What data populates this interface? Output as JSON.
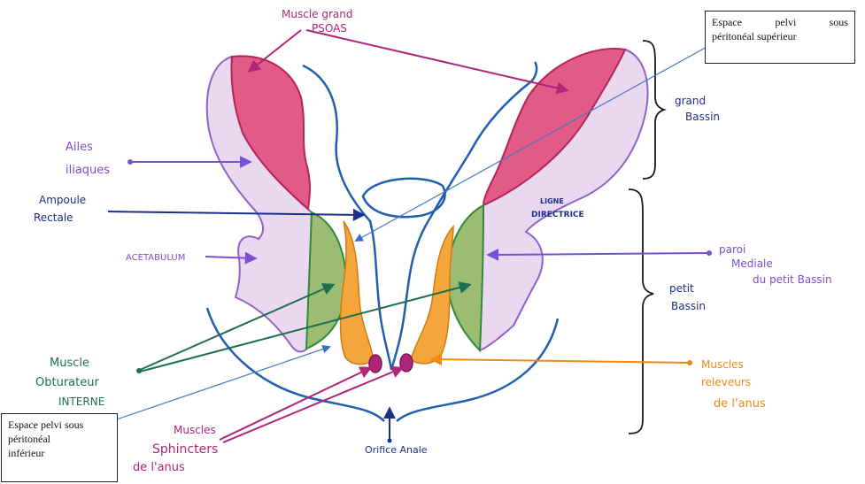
{
  "labels": {
    "psoas_l1": "Muscle grand",
    "psoas_l2": "PSOAS",
    "ailes_l1": "Ailes",
    "ailes_l2": "iliaques",
    "ampoule_l1": "Ampoule",
    "ampoule_l2": "Rectale",
    "acetabulum": "ACETABULUM",
    "obturateur_l1": "Muscle",
    "obturateur_l2": "Obturateur",
    "obturateur_l3": "INTERNE",
    "sphincters_l1": "Muscles",
    "sphincters_l2": "Sphincters",
    "sphincters_l3": "de l'anus",
    "orifice": "Orifice Anale",
    "grand_bassin_l1": "grand",
    "grand_bassin_l2": "Bassin",
    "petit_bassin_l1": "petit",
    "petit_bassin_l2": "Bassin",
    "paroi_l1": "paroi",
    "paroi_l2": "Mediale",
    "paroi_l3": "du petit Bassin",
    "releveurs_l1": "Muscles",
    "releveurs_l2": "releveurs",
    "releveurs_l3": "de l'anus",
    "ligne_l1": "LIGNE",
    "ligne_l2": "DIRECTRICE"
  },
  "boxes": {
    "superieur_words": [
      "Espace",
      "pelvi",
      "sous"
    ],
    "superieur_l2": "péritonéal supérieur",
    "inferieur_l1": "Espace pelvi sous",
    "inferieur_l2": "péritonéal",
    "inferieur_l3": "inférieur"
  },
  "colors": {
    "psoas": "#e25a86",
    "iliac": "#ead8f0",
    "iliac_outline": "#8e62c6",
    "obturator": "#9cbc72",
    "levator": "#f4a63c",
    "sphincter": "#b0247a",
    "rectum": "#1f5fb0",
    "pointer_line": "#4a78c8"
  }
}
